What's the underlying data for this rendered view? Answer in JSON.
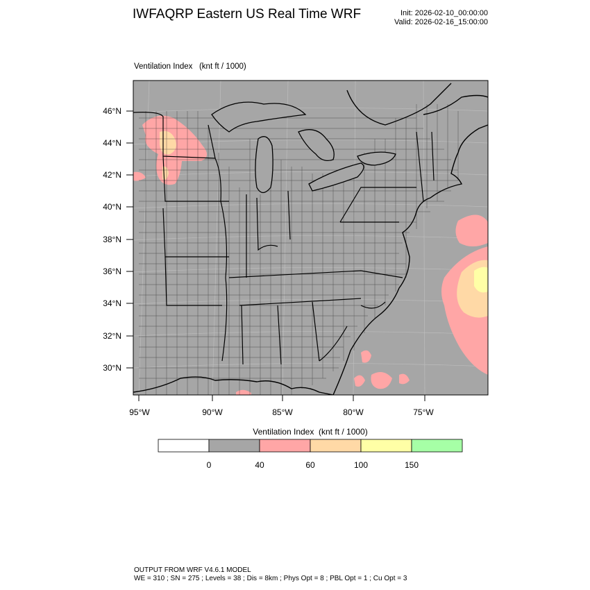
{
  "header": {
    "title": "IWFAQRP Eastern US Real Time WRF",
    "init": "Init: 2026-02-10_00:00:00",
    "valid": "Valid: 2026-02-16_15:00:00"
  },
  "field": {
    "label": "Ventilation Index   (knt ft / 1000)"
  },
  "map": {
    "lon_labels": [
      "95°W",
      "90°W",
      "85°W",
      "80°W",
      "75°W"
    ],
    "lat_labels": [
      "46°N",
      "44°N",
      "42°N",
      "40°N",
      "38°N",
      "36°N",
      "34°N",
      "32°N",
      "30°N"
    ],
    "land_color": "#a6a6a6",
    "ocean_color": "#a6a6a6"
  },
  "colorbar": {
    "title": "Ventilation Index  (knt ft / 1000)",
    "colors": [
      "#ffffff",
      "#a6a6a6",
      "#ffa6a6",
      "#ffd9a6",
      "#ffffa6",
      "#a6ffa6"
    ],
    "labels": [
      "0",
      "40",
      "60",
      "100",
      "150"
    ]
  },
  "footer": {
    "line1": "OUTPUT FROM WRF V4.6.1 MODEL",
    "line2": "WE = 310 ; SN = 275 ; Levels = 38 ; Dis = 8km ; Phys Opt = 8 ; PBL Opt = 1 ; Cu Opt = 3"
  }
}
